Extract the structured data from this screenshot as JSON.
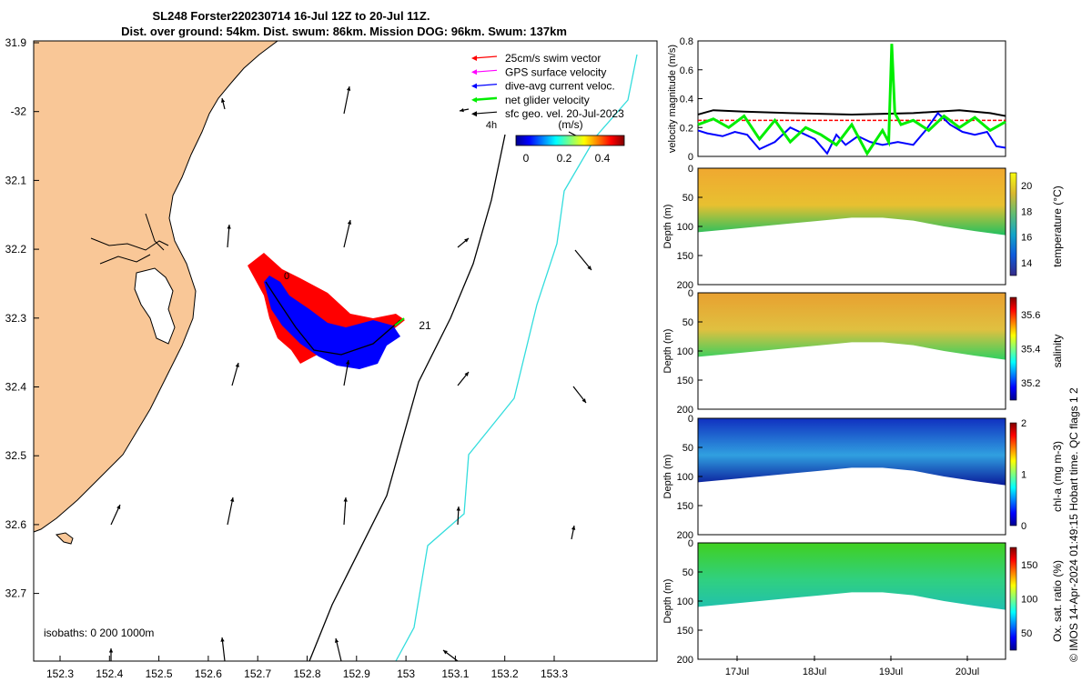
{
  "title": {
    "line1": "SL248 Forster220230714 16-Jul 12Z to 20-Jul 11Z.",
    "line2": "Dist. over ground: 54km. Dist. swum: 86km. Mission DOG: 96km. Swum: 137km"
  },
  "map": {
    "lon_ticks": [
      "152.3",
      "152.4",
      "152.5",
      "152.6",
      "152.7",
      "152.8",
      "152.9",
      "153",
      "153.1",
      "153.2",
      "153.3"
    ],
    "lat_ticks": [
      "31.9",
      "-32",
      "32.1",
      "32.2",
      "32.3",
      "32.4",
      "32.5",
      "32.6",
      "32.7"
    ],
    "legend": [
      {
        "label": "25cm/s swim vector",
        "color": "#ff0000"
      },
      {
        "label": "GPS surface velocity",
        "color": "#ff00ff"
      },
      {
        "label": "dive-avg current veloc.",
        "color": "#0000ff"
      },
      {
        "label": "net glider velocity",
        "color": "#00ee00"
      },
      {
        "label": "sfc geo. vel. 20-Jul-2023",
        "color": "#000000"
      }
    ],
    "colorbar": {
      "unit": "(m/s)",
      "tick_labels": [
        "0",
        "0.2",
        "0.4"
      ],
      "time_label": "4h"
    },
    "start_marker": "0",
    "end_marker": "21",
    "isobaths_label": "isobaths: 0   200  1000m",
    "land_color": "#f9c797",
    "isobath_200_color": "#000000",
    "isobath_1000_color": "#33dddd"
  },
  "chart_data": [
    {
      "type": "line",
      "title": "",
      "ylabel": "velocity magnitude (m/s)",
      "ylim": [
        0,
        0.8
      ],
      "yticks": [
        "0",
        "0.2",
        "0.4",
        "0.6",
        "0.8"
      ],
      "x_start": "16-Jul 12Z",
      "x_end": "20-Jul 11Z",
      "series": [
        {
          "color": "#000000",
          "x": [
            0,
            0.05,
            0.15,
            0.3,
            0.5,
            0.7,
            0.85,
            0.95,
            1.0
          ],
          "values": [
            0.29,
            0.32,
            0.31,
            0.3,
            0.29,
            0.3,
            0.32,
            0.3,
            0.28
          ]
        },
        {
          "color": "#ff0000",
          "x": [
            0,
            0.25,
            0.5,
            0.75,
            1.0
          ],
          "values": [
            0.25,
            0.25,
            0.25,
            0.25,
            0.25
          ]
        },
        {
          "color": "#0000ff",
          "x": [
            0,
            0.03,
            0.08,
            0.12,
            0.16,
            0.2,
            0.25,
            0.3,
            0.35,
            0.38,
            0.42,
            0.45,
            0.48,
            0.52,
            0.56,
            0.6,
            0.65,
            0.7,
            0.74,
            0.78,
            0.82,
            0.86,
            0.9,
            0.94,
            0.97,
            1.0
          ],
          "values": [
            0.18,
            0.16,
            0.14,
            0.17,
            0.15,
            0.05,
            0.1,
            0.2,
            0.15,
            0.12,
            0.02,
            0.15,
            0.08,
            0.14,
            0.1,
            0.08,
            0.1,
            0.08,
            0.18,
            0.3,
            0.22,
            0.17,
            0.15,
            0.17,
            0.07,
            0.06
          ]
        },
        {
          "color": "#00ee00",
          "x": [
            0,
            0.05,
            0.1,
            0.15,
            0.2,
            0.25,
            0.3,
            0.35,
            0.4,
            0.45,
            0.5,
            0.55,
            0.6,
            0.62,
            0.63,
            0.64,
            0.66,
            0.7,
            0.75,
            0.8,
            0.85,
            0.9,
            0.95,
            1.0
          ],
          "values": [
            0.22,
            0.26,
            0.2,
            0.28,
            0.12,
            0.25,
            0.1,
            0.2,
            0.15,
            0.08,
            0.22,
            0.02,
            0.18,
            0.1,
            0.78,
            0.3,
            0.22,
            0.25,
            0.18,
            0.28,
            0.2,
            0.27,
            0.18,
            0.24
          ]
        }
      ]
    },
    {
      "type": "heatmap",
      "ylabel": "Depth (m)",
      "clabel": "temperature (°C)",
      "yticks": [
        "0",
        "50",
        "100",
        "150",
        "200"
      ],
      "ylim": [
        0,
        200
      ],
      "cticks": [
        "14",
        "16",
        "18",
        "20"
      ],
      "crange": [
        13,
        21
      ],
      "x": [
        0,
        0.1,
        0.2,
        0.3,
        0.4,
        0.5,
        0.6,
        0.7,
        0.8,
        0.9,
        1.0
      ],
      "max_depth": [
        110,
        105,
        100,
        95,
        90,
        85,
        85,
        90,
        100,
        108,
        115
      ]
    },
    {
      "type": "heatmap",
      "ylabel": "Depth (m)",
      "clabel": "salinity",
      "yticks": [
        "0",
        "50",
        "100",
        "150",
        "200"
      ],
      "ylim": [
        0,
        200
      ],
      "cticks": [
        "35.2",
        "35.4",
        "35.6"
      ],
      "crange": [
        35.1,
        35.7
      ],
      "x": [
        0,
        0.1,
        0.2,
        0.3,
        0.4,
        0.5,
        0.6,
        0.7,
        0.8,
        0.9,
        1.0
      ],
      "max_depth": [
        110,
        105,
        100,
        95,
        90,
        85,
        85,
        90,
        100,
        108,
        115
      ]
    },
    {
      "type": "heatmap",
      "ylabel": "Depth (m)",
      "clabel": "chl-a (mg m-3)",
      "yticks": [
        "0",
        "50",
        "100",
        "150",
        "200"
      ],
      "ylim": [
        0,
        200
      ],
      "cticks": [
        "0",
        "1",
        "2"
      ],
      "crange": [
        0,
        2
      ],
      "x": [
        0,
        0.1,
        0.2,
        0.3,
        0.4,
        0.5,
        0.6,
        0.7,
        0.8,
        0.9,
        1.0
      ],
      "max_depth": [
        110,
        105,
        100,
        95,
        90,
        85,
        85,
        90,
        100,
        108,
        115
      ]
    },
    {
      "type": "heatmap",
      "ylabel": "Depth (m)",
      "clabel": "Ox. sat. ratio (%)",
      "yticks": [
        "0",
        "50",
        "100",
        "150",
        "200"
      ],
      "ylim": [
        0,
        200
      ],
      "cticks": [
        "50",
        "100",
        "150"
      ],
      "crange": [
        25,
        175
      ],
      "x": [
        0,
        0.1,
        0.2,
        0.3,
        0.4,
        0.5,
        0.6,
        0.7,
        0.8,
        0.9,
        1.0
      ],
      "max_depth": [
        110,
        105,
        100,
        95,
        90,
        85,
        85,
        90,
        100,
        108,
        115
      ]
    }
  ],
  "time_axis": {
    "ticks": [
      "17Jul",
      "18Jul",
      "19Jul",
      "20Jul"
    ]
  },
  "side_note": "© IMOS 14-Apr-2024 01:49:15 Hobart time. QC flags 1  2"
}
